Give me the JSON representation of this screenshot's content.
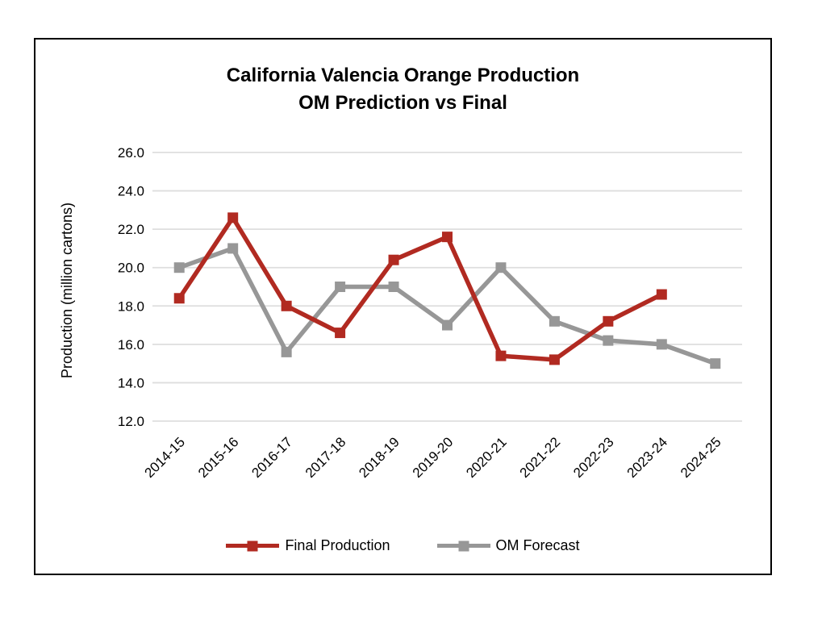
{
  "chart_data": {
    "type": "line",
    "title": "California Valencia Orange Production",
    "subtitle": "OM Prediction vs Final",
    "ylabel": "Production (million cartons)",
    "xlabel": "",
    "categories": [
      "2014-15",
      "2015-16",
      "2016-17",
      "2017-18",
      "2018-19",
      "2019-20",
      "2020-21",
      "2021-22",
      "2022-23",
      "2023-24",
      "2024-25"
    ],
    "series": [
      {
        "name": "Final Production",
        "color": "#B12A21",
        "marker": "square",
        "values": [
          18.4,
          22.6,
          18.0,
          16.6,
          20.4,
          21.6,
          15.4,
          15.2,
          17.2,
          18.6,
          null
        ]
      },
      {
        "name": "OM Forecast",
        "color": "#979797",
        "marker": "square",
        "values": [
          20.0,
          21.0,
          15.6,
          19.0,
          19.0,
          17.0,
          20.0,
          17.2,
          16.2,
          16.0,
          15.0
        ]
      }
    ],
    "ylim": [
      12.0,
      26.0
    ],
    "ytick_labels": [
      "26.0",
      "24.0",
      "22.0",
      "20.0",
      "18.0",
      "16.0",
      "14.0",
      "12.0"
    ],
    "grid": true,
    "gridline_color": "#DEDEDE",
    "frame_border_color": "#000000",
    "legend_position": "bottom"
  }
}
